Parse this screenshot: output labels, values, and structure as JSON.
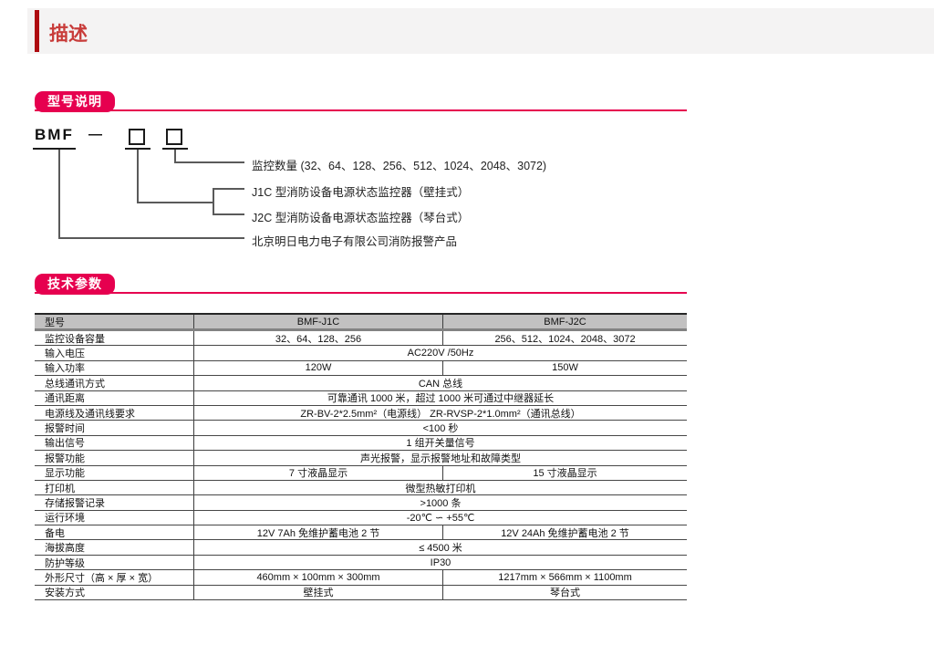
{
  "colors": {
    "accent_red": "#e6004f",
    "title_red": "#c83c3a",
    "bar_red": "#ae0b10",
    "band_bg": "#f4f3f3",
    "table_header_bg": "#c2c1c1"
  },
  "header": {
    "title": "描述"
  },
  "model_section": {
    "badge": "型号说明",
    "diagram": {
      "prefix": "BMF",
      "separator": "—",
      "notes": [
        "监控数量 (32、64、128、256、512、1024、2048、3072)",
        "J1C 型消防设备电源状态监控器（壁挂式）",
        "J2C 型消防设备电源状态监控器（琴台式）",
        "北京明日电力电子有限公司消防报警产品"
      ]
    }
  },
  "specs_section": {
    "badge": "技术参数",
    "table": {
      "header": [
        "型号",
        "BMF-J1C",
        "BMF-J2C"
      ],
      "rows": [
        {
          "label": "监控设备容量",
          "j1c": "32、64、128、256",
          "j2c": "256、512、1024、2048、3072"
        },
        {
          "label": "输入电压",
          "span": "AC220V /50Hz"
        },
        {
          "label": "输入功率",
          "j1c": "120W",
          "j2c": "150W"
        },
        {
          "label": "总线通讯方式",
          "span": "CAN 总线"
        },
        {
          "label": "通讯距离",
          "span": "可靠通讯 1000 米，超过 1000 米可通过中继器延长"
        },
        {
          "label": "电源线及通讯线要求",
          "span": "ZR-BV-2*2.5mm²（电源线） ZR-RVSP-2*1.0mm²（通讯总线）"
        },
        {
          "label": "报警时间",
          "span": "<100 秒"
        },
        {
          "label": "输出信号",
          "span": "1 组开关量信号"
        },
        {
          "label": "报警功能",
          "span": "声光报警，显示报警地址和故障类型"
        },
        {
          "label": "显示功能",
          "j1c": "7 寸液晶显示",
          "j2c": "15 寸液晶显示"
        },
        {
          "label": "打印机",
          "span": "微型热敏打印机"
        },
        {
          "label": "存储报警记录",
          "span": ">1000 条"
        },
        {
          "label": "运行环境",
          "span": "-20℃ ∽ +55℃"
        },
        {
          "label": "备电",
          "j1c": "12V 7Ah 免维护蓄电池 2 节",
          "j2c": "12V 24Ah 免维护蓄电池 2 节"
        },
        {
          "label": "海拔高度",
          "span": "≤ 4500 米"
        },
        {
          "label": "防护等级",
          "span": "IP30"
        },
        {
          "label": "外形尺寸（高 × 厚 × 宽）",
          "j1c": "460mm × 100mm × 300mm",
          "j2c": "1217mm × 566mm × 1100mm"
        },
        {
          "label": "安装方式",
          "j1c": "壁挂式",
          "j2c": "琴台式"
        }
      ]
    }
  }
}
